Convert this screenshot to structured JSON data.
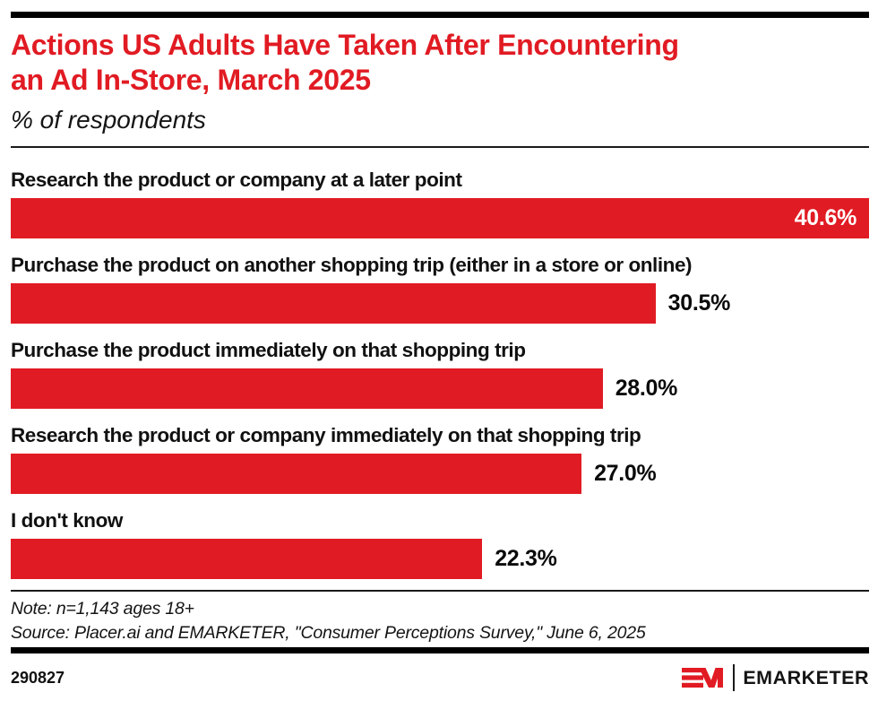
{
  "colors": {
    "accent_red": "#E11B23",
    "bar_value_inside": "#FFFFFF",
    "text": "#000000"
  },
  "header": {
    "title": "Actions US Adults Have Taken After Encountering an Ad In-Store, March 2025",
    "title_lines": [
      "Actions US Adults Have Taken After Encountering",
      "an Ad In-Store, March 2025"
    ],
    "subtitle": "% of respondents"
  },
  "chart_data": {
    "type": "bar",
    "orientation": "horizontal",
    "title": "Actions US Adults Have Taken After Encountering an Ad In-Store, March 2025",
    "subtitle": "% of respondents",
    "categories": [
      "Research the product or company at a later point",
      "Purchase the product on another shopping trip (either in a store or online)",
      "Purchase the product immediately on that shopping trip",
      "Research the product or company immediately on that shopping trip",
      "I don't know"
    ],
    "values": [
      40.6,
      30.5,
      28.0,
      27.0,
      22.3
    ],
    "value_labels": [
      "40.6%",
      "30.5%",
      "28.0%",
      "27.0%",
      "22.3%"
    ],
    "value_label_positions": [
      "inside",
      "outside",
      "outside",
      "outside",
      "outside"
    ],
    "xlim": [
      0,
      40.6
    ],
    "grid": false,
    "legend": false,
    "bar_color": "#E11B23"
  },
  "footer": {
    "note": "Note: n=1,143 ages 18+",
    "source": "Source: Placer.ai and EMARKETER, \"Consumer Perceptions Survey,\" June 6, 2025",
    "chart_id": "290827",
    "brand": "EMARKETER"
  }
}
